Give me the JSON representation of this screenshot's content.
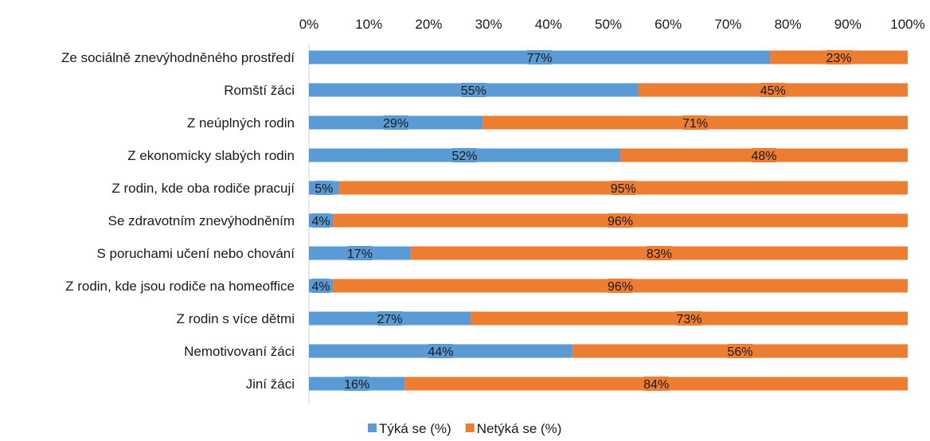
{
  "chart_data": {
    "type": "bar",
    "orientation": "horizontal",
    "stacked": "percent",
    "categories": [
      "Ze sociálně znevýhodněného prostředí",
      "Romští žáci",
      "Z neúplných rodin",
      "Z ekonomicky slabých rodin",
      "Z rodin, kde oba rodiče pracují",
      "Se zdravotním znevýhodněním",
      "S poruchami učení nebo chování",
      "Z rodin, kde jsou rodiče na homeoffice",
      "Z rodin s více dětmi",
      "Nemotivovaní žáci",
      "Jiní žáci"
    ],
    "series": [
      {
        "name": "Týká se (%)",
        "color": "#5b9bd5",
        "values": [
          77,
          55,
          29,
          52,
          5,
          4,
          17,
          4,
          27,
          44,
          16
        ],
        "labels": [
          "77%",
          "55%",
          "29%",
          "52%",
          "5%",
          "4%",
          "17%",
          "4%",
          "27%",
          "44%",
          "16%"
        ]
      },
      {
        "name": "Netýká se (%)",
        "color": "#ed7d31",
        "values": [
          23,
          45,
          71,
          48,
          95,
          96,
          83,
          96,
          73,
          56,
          84
        ],
        "labels": [
          "23%",
          "45%",
          "71%",
          "48%",
          "95%",
          "96%",
          "83%",
          "96%",
          "73%",
          "56%",
          "84%"
        ]
      }
    ],
    "xlim": [
      0,
      100
    ],
    "x_ticks": [
      "0%",
      "10%",
      "20%",
      "30%",
      "40%",
      "50%",
      "60%",
      "70%",
      "80%",
      "90%",
      "100%"
    ],
    "x_axis_position": "top",
    "grid": false,
    "legend_position": "bottom"
  }
}
